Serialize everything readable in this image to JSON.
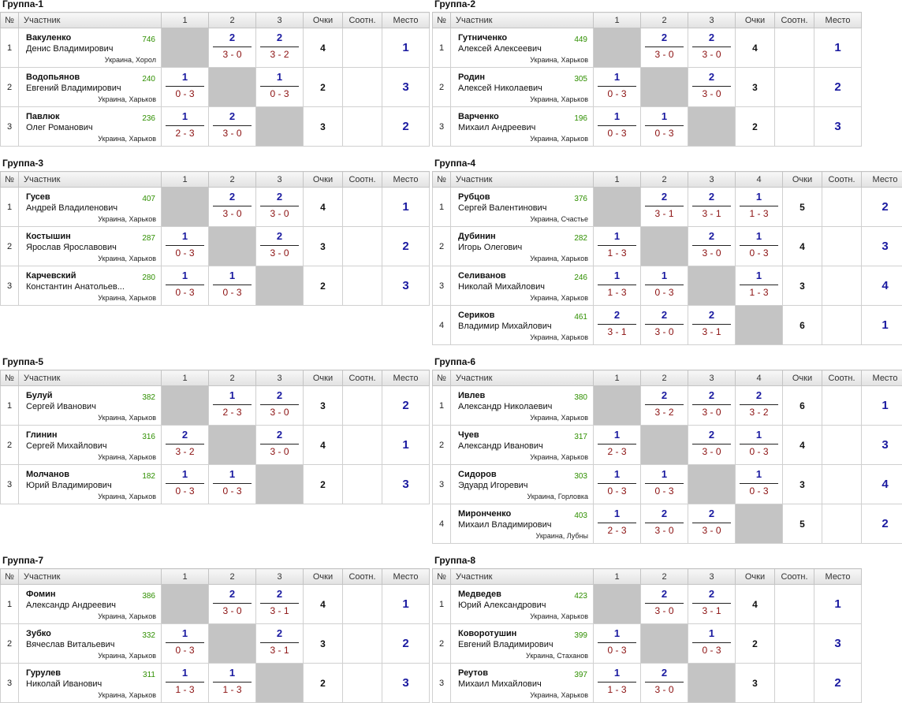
{
  "headers": {
    "num": "№",
    "participant": "Участник",
    "points": "Очки",
    "ratio": "Соотн.",
    "place": "Место"
  },
  "groups": [
    {
      "title": "Группа-1",
      "cols": [
        "1",
        "2",
        "3"
      ],
      "rows": [
        {
          "n": "1",
          "last": "Вакуленко",
          "first": "Денис Владимирович",
          "rating": "746",
          "city": "Украина, Хорол",
          "cells": [
            null,
            {
              "w": "2",
              "s": "3 - 0"
            },
            {
              "w": "2",
              "s": "3 - 2"
            }
          ],
          "points": "4",
          "ratio": "",
          "place": "1"
        },
        {
          "n": "2",
          "last": "Водопьянов",
          "first": "Евгений Владимирович",
          "rating": "240",
          "city": "Украина, Харьков",
          "cells": [
            {
              "w": "1",
              "s": "0 - 3"
            },
            null,
            {
              "w": "1",
              "s": "0 - 3"
            }
          ],
          "points": "2",
          "ratio": "",
          "place": "3"
        },
        {
          "n": "3",
          "last": "Павлюк",
          "first": "Олег Романович",
          "rating": "236",
          "city": "Украина, Харьков",
          "cells": [
            {
              "w": "1",
              "s": "2 - 3"
            },
            {
              "w": "2",
              "s": "3 - 0"
            },
            null
          ],
          "points": "3",
          "ratio": "",
          "place": "2"
        }
      ]
    },
    {
      "title": "Группа-2",
      "cols": [
        "1",
        "2",
        "3"
      ],
      "rows": [
        {
          "n": "1",
          "last": "Гутниченко",
          "first": "Алексей Алексеевич",
          "rating": "449",
          "city": "Украина, Харьков",
          "cells": [
            null,
            {
              "w": "2",
              "s": "3 - 0"
            },
            {
              "w": "2",
              "s": "3 - 0"
            }
          ],
          "points": "4",
          "ratio": "",
          "place": "1"
        },
        {
          "n": "2",
          "last": "Родин",
          "first": "Алексей Николаевич",
          "rating": "305",
          "city": "Украина, Харьков",
          "cells": [
            {
              "w": "1",
              "s": "0 - 3"
            },
            null,
            {
              "w": "2",
              "s": "3 - 0"
            }
          ],
          "points": "3",
          "ratio": "",
          "place": "2"
        },
        {
          "n": "3",
          "last": "Варченко",
          "first": "Михаил Андреевич",
          "rating": "196",
          "city": "Украина, Харьков",
          "cells": [
            {
              "w": "1",
              "s": "0 - 3"
            },
            {
              "w": "1",
              "s": "0 - 3"
            },
            null
          ],
          "points": "2",
          "ratio": "",
          "place": "3"
        }
      ]
    },
    {
      "title": "Группа-3",
      "cols": [
        "1",
        "2",
        "3"
      ],
      "rows": [
        {
          "n": "1",
          "last": "Гусев",
          "first": "Андрей Владиленович",
          "rating": "407",
          "city": "Украина, Харьков",
          "cells": [
            null,
            {
              "w": "2",
              "s": "3 - 0"
            },
            {
              "w": "2",
              "s": "3 - 0"
            }
          ],
          "points": "4",
          "ratio": "",
          "place": "1"
        },
        {
          "n": "2",
          "last": "Костышин",
          "first": "Ярослав Ярославович",
          "rating": "287",
          "city": "Украина, Харьков",
          "cells": [
            {
              "w": "1",
              "s": "0 - 3"
            },
            null,
            {
              "w": "2",
              "s": "3 - 0"
            }
          ],
          "points": "3",
          "ratio": "",
          "place": "2"
        },
        {
          "n": "3",
          "last": "Карчевский",
          "first": "Константин Анатольев...",
          "rating": "280",
          "city": "Украина, Харьков",
          "cells": [
            {
              "w": "1",
              "s": "0 - 3"
            },
            {
              "w": "1",
              "s": "0 - 3"
            },
            null
          ],
          "points": "2",
          "ratio": "",
          "place": "3"
        }
      ]
    },
    {
      "title": "Группа-4",
      "cols": [
        "1",
        "2",
        "3",
        "4"
      ],
      "rows": [
        {
          "n": "1",
          "last": "Рубцов",
          "first": "Сергей Валентинович",
          "rating": "376",
          "city": "Украина, Счастье",
          "cells": [
            null,
            {
              "w": "2",
              "s": "3 - 1"
            },
            {
              "w": "2",
              "s": "3 - 1"
            },
            {
              "w": "1",
              "s": "1 - 3"
            }
          ],
          "points": "5",
          "ratio": "",
          "place": "2"
        },
        {
          "n": "2",
          "last": "Дубинин",
          "first": "Игорь Олегович",
          "rating": "282",
          "city": "Украина, Харьков",
          "cells": [
            {
              "w": "1",
              "s": "1 - 3"
            },
            null,
            {
              "w": "2",
              "s": "3 - 0"
            },
            {
              "w": "1",
              "s": "0 - 3"
            }
          ],
          "points": "4",
          "ratio": "",
          "place": "3"
        },
        {
          "n": "3",
          "last": "Селиванов",
          "first": "Николай Михайлович",
          "rating": "246",
          "city": "Украина, Харьков",
          "cells": [
            {
              "w": "1",
              "s": "1 - 3"
            },
            {
              "w": "1",
              "s": "0 - 3"
            },
            null,
            {
              "w": "1",
              "s": "1 - 3"
            }
          ],
          "points": "3",
          "ratio": "",
          "place": "4"
        },
        {
          "n": "4",
          "last": "Сериков",
          "first": "Владимир Михайлович",
          "rating": "461",
          "city": "Украина, Харьков",
          "cells": [
            {
              "w": "2",
              "s": "3 - 1"
            },
            {
              "w": "2",
              "s": "3 - 0"
            },
            {
              "w": "2",
              "s": "3 - 1"
            },
            null
          ],
          "points": "6",
          "ratio": "",
          "place": "1"
        }
      ]
    },
    {
      "title": "Группа-5",
      "cols": [
        "1",
        "2",
        "3"
      ],
      "rows": [
        {
          "n": "1",
          "last": "Булуй",
          "first": "Сергей Иванович",
          "rating": "382",
          "city": "Украина, Харьков",
          "cells": [
            null,
            {
              "w": "1",
              "s": "2 - 3"
            },
            {
              "w": "2",
              "s": "3 - 0"
            }
          ],
          "points": "3",
          "ratio": "",
          "place": "2"
        },
        {
          "n": "2",
          "last": "Глинин",
          "first": "Сергей Михайлович",
          "rating": "316",
          "city": "Украина, Харьков",
          "cells": [
            {
              "w": "2",
              "s": "3 - 2"
            },
            null,
            {
              "w": "2",
              "s": "3 - 0"
            }
          ],
          "points": "4",
          "ratio": "",
          "place": "1"
        },
        {
          "n": "3",
          "last": "Молчанов",
          "first": "Юрий Владимирович",
          "rating": "182",
          "city": "Украина, Харьков",
          "cells": [
            {
              "w": "1",
              "s": "0 - 3"
            },
            {
              "w": "1",
              "s": "0 - 3"
            },
            null
          ],
          "points": "2",
          "ratio": "",
          "place": "3"
        }
      ]
    },
    {
      "title": "Группа-6",
      "cols": [
        "1",
        "2",
        "3",
        "4"
      ],
      "rows": [
        {
          "n": "1",
          "last": "Ивлев",
          "first": "Александр Николаевич",
          "rating": "380",
          "city": "Украина, Харьков",
          "cells": [
            null,
            {
              "w": "2",
              "s": "3 - 2"
            },
            {
              "w": "2",
              "s": "3 - 0"
            },
            {
              "w": "2",
              "s": "3 - 2"
            }
          ],
          "points": "6",
          "ratio": "",
          "place": "1"
        },
        {
          "n": "2",
          "last": "Чуев",
          "first": "Александр Иванович",
          "rating": "317",
          "city": "Украина, Харьков",
          "cells": [
            {
              "w": "1",
              "s": "2 - 3"
            },
            null,
            {
              "w": "2",
              "s": "3 - 0"
            },
            {
              "w": "1",
              "s": "0 - 3"
            }
          ],
          "points": "4",
          "ratio": "",
          "place": "3"
        },
        {
          "n": "3",
          "last": "Сидоров",
          "first": "Эдуард Игоревич",
          "rating": "303",
          "city": "Украина, Горловка",
          "cells": [
            {
              "w": "1",
              "s": "0 - 3"
            },
            {
              "w": "1",
              "s": "0 - 3"
            },
            null,
            {
              "w": "1",
              "s": "0 - 3"
            }
          ],
          "points": "3",
          "ratio": "",
          "place": "4"
        },
        {
          "n": "4",
          "last": "Миронченко",
          "first": "Михаил Владимирович",
          "rating": "403",
          "city": "Украина, Лубны",
          "cells": [
            {
              "w": "1",
              "s": "2 - 3"
            },
            {
              "w": "2",
              "s": "3 - 0"
            },
            {
              "w": "2",
              "s": "3 - 0"
            },
            null
          ],
          "points": "5",
          "ratio": "",
          "place": "2"
        }
      ]
    },
    {
      "title": "Группа-7",
      "cols": [
        "1",
        "2",
        "3"
      ],
      "rows": [
        {
          "n": "1",
          "last": "Фомин",
          "first": "Александр Андреевич",
          "rating": "386",
          "city": "Украина, Харьков",
          "cells": [
            null,
            {
              "w": "2",
              "s": "3 - 0"
            },
            {
              "w": "2",
              "s": "3 - 1"
            }
          ],
          "points": "4",
          "ratio": "",
          "place": "1"
        },
        {
          "n": "2",
          "last": "Зубко",
          "first": "Вячеслав Витальевич",
          "rating": "332",
          "city": "Украина, Харьков",
          "cells": [
            {
              "w": "1",
              "s": "0 - 3"
            },
            null,
            {
              "w": "2",
              "s": "3 - 1"
            }
          ],
          "points": "3",
          "ratio": "",
          "place": "2"
        },
        {
          "n": "3",
          "last": "Гурулев",
          "first": "Николай Иванович",
          "rating": "311",
          "city": "Украина, Харьков",
          "cells": [
            {
              "w": "1",
              "s": "1 - 3"
            },
            {
              "w": "1",
              "s": "1 - 3"
            },
            null
          ],
          "points": "2",
          "ratio": "",
          "place": "3"
        }
      ]
    },
    {
      "title": "Группа-8",
      "cols": [
        "1",
        "2",
        "3"
      ],
      "rows": [
        {
          "n": "1",
          "last": "Медведев",
          "first": "Юрий Александрович",
          "rating": "423",
          "city": "Украина, Харьков",
          "cells": [
            null,
            {
              "w": "2",
              "s": "3 - 0"
            },
            {
              "w": "2",
              "s": "3 - 1"
            }
          ],
          "points": "4",
          "ratio": "",
          "place": "1"
        },
        {
          "n": "2",
          "last": "Коворотушин",
          "first": "Евгений Владимирович",
          "rating": "399",
          "city": "Украина, Стаханов",
          "cells": [
            {
              "w": "1",
              "s": "0 - 3"
            },
            null,
            {
              "w": "1",
              "s": "0 - 3"
            }
          ],
          "points": "2",
          "ratio": "",
          "place": "3"
        },
        {
          "n": "3",
          "last": "Реутов",
          "first": "Михаил Михайлович",
          "rating": "397",
          "city": "Украина, Харьков",
          "cells": [
            {
              "w": "1",
              "s": "1 - 3"
            },
            {
              "w": "2",
              "s": "3 - 0"
            },
            null
          ],
          "points": "3",
          "ratio": "",
          "place": "2"
        }
      ]
    }
  ]
}
